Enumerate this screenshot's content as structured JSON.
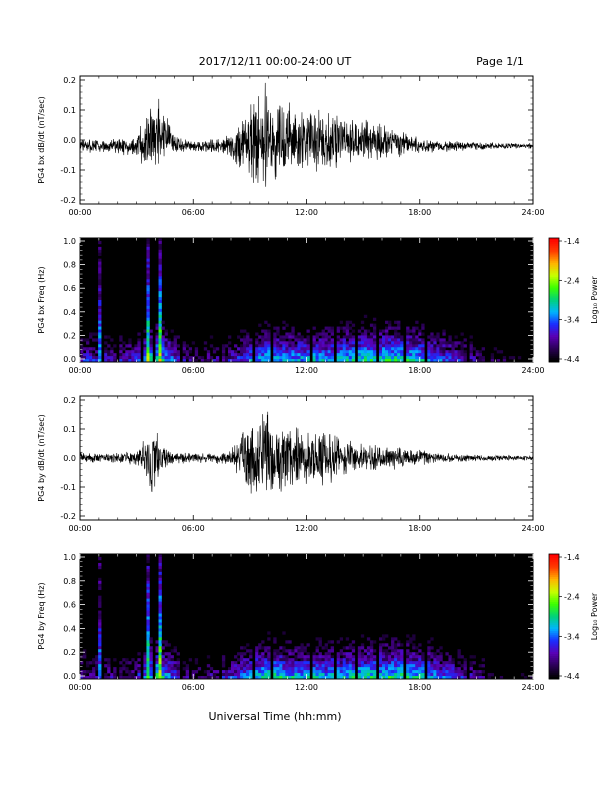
{
  "header": {
    "date_range": "2017/12/11  00:00-24:00 UT",
    "page": "Page 1/1"
  },
  "footer": {
    "xlabel": "Universal Time (hh:mm)"
  },
  "colorbar": {
    "label": "Log₁₀ Power",
    "ticks": [
      -1.4,
      -2.4,
      -3.4,
      -4.4
    ],
    "tick_labels": [
      "-1.4",
      "-2.4",
      "-3.4",
      "-4.4"
    ],
    "range": [
      -4.4,
      -1.4
    ],
    "colors": [
      "#000000",
      "#2a0055",
      "#5a00b4",
      "#1a2bff",
      "#00b4ff",
      "#00d27a",
      "#3cff00",
      "#c8ff00",
      "#ffb400",
      "#ff3c00",
      "#ff0000"
    ]
  },
  "chart_data": [
    {
      "type": "line",
      "ylabel": "PG4 bx dB/dt (nT/sec)",
      "xlim": [
        "00:00",
        "24:00"
      ],
      "ylim": [
        -0.2,
        0.2
      ],
      "x_ticks": [
        "00:00",
        "06:00",
        "12:00",
        "18:00",
        "24:00"
      ],
      "y_ticks": [
        "0.2",
        "0.1",
        "0.0",
        "-0.1",
        "-0.2"
      ],
      "series": [
        {
          "x_hours": [
            0,
            1,
            2,
            3,
            3.5,
            3.85,
            4.2,
            5,
            6,
            7,
            8,
            8.6,
            9.3,
            9.7,
            10.5,
            11,
            12,
            13,
            14,
            15,
            16,
            17,
            18,
            19,
            20,
            21,
            22,
            23,
            24
          ],
          "center": [
            -0.02,
            -0.02,
            -0.02,
            -0.02,
            -0.01,
            0.0,
            0.04,
            -0.01,
            -0.02,
            -0.02,
            -0.02,
            -0.01,
            0.0,
            0.02,
            0.01,
            0.01,
            0.0,
            0.0,
            0.0,
            0.0,
            -0.01,
            -0.01,
            -0.02,
            -0.02,
            -0.02,
            -0.02,
            -0.02,
            -0.02,
            -0.02
          ],
          "amplitude": [
            0.03,
            0.02,
            0.03,
            0.04,
            0.1,
            0.2,
            0.12,
            0.04,
            0.02,
            0.03,
            0.04,
            0.12,
            0.18,
            0.2,
            0.15,
            0.13,
            0.12,
            0.14,
            0.1,
            0.08,
            0.07,
            0.05,
            0.03,
            0.02,
            0.02,
            0.015,
            0.012,
            0.01,
            0.01
          ]
        }
      ]
    },
    {
      "type": "heatmap",
      "ylabel": "PG4 bx Freq (Hz)",
      "xlim": [
        "00:00",
        "24:00"
      ],
      "ylim": [
        0.0,
        1.0
      ],
      "x_ticks": [
        "00:00",
        "06:00",
        "12:00",
        "18:00",
        "24:00"
      ],
      "y_ticks": [
        "1.0",
        "0.8",
        "0.6",
        "0.4",
        "0.2",
        "0.0"
      ],
      "value_label": "Log₁₀ Power",
      "value_range": [
        -4.4,
        -1.4
      ],
      "gap_hours": [
        1.25,
        2.0,
        3.3,
        3.85,
        5.3,
        7.5,
        9.25,
        10.2,
        12.3,
        13.5,
        14.6,
        15.7,
        17.15,
        18.3,
        20.5,
        21.5
      ],
      "bright_columns_hours": [
        1.0,
        3.6,
        4.2
      ],
      "energy_envelope": {
        "hours": [
          0,
          2,
          3,
          4,
          5,
          6,
          7,
          8,
          9,
          10,
          11,
          12,
          13,
          14,
          15,
          16,
          17,
          18,
          19,
          20,
          21,
          22,
          23,
          24
        ],
        "level": [
          0.55,
          0.5,
          0.55,
          0.85,
          0.6,
          0.4,
          0.45,
          0.5,
          0.65,
          0.75,
          0.72,
          0.7,
          0.72,
          0.75,
          0.78,
          0.8,
          0.82,
          0.75,
          0.65,
          0.55,
          0.45,
          0.35,
          0.3,
          0.25
        ]
      }
    },
    {
      "type": "line",
      "ylabel": "PG4 by dB/dt (nT/sec)",
      "xlim": [
        "00:00",
        "24:00"
      ],
      "ylim": [
        -0.2,
        0.2
      ],
      "x_ticks": [
        "00:00",
        "06:00",
        "12:00",
        "18:00",
        "24:00"
      ],
      "y_ticks": [
        "0.2",
        "0.1",
        "0.0",
        "-0.1",
        "-0.2"
      ],
      "series": [
        {
          "x_hours": [
            0,
            1,
            2,
            3,
            3.5,
            3.8,
            4.2,
            5,
            6,
            7,
            8,
            8.5,
            9.2,
            9.7,
            10.5,
            11,
            12,
            13,
            14,
            15,
            16,
            17,
            18,
            19,
            20,
            21,
            22,
            23,
            24
          ],
          "center": [
            0.0,
            0.0,
            0.0,
            0.0,
            0.0,
            0.0,
            0.0,
            0.0,
            0.0,
            0.0,
            0.0,
            0.0,
            0.0,
            0.0,
            0.0,
            0.0,
            0.0,
            0.0,
            0.0,
            0.0,
            0.0,
            0.0,
            0.0,
            0.0,
            0.0,
            0.0,
            0.0,
            0.0,
            0.0
          ],
          "amplitude": [
            0.02,
            0.02,
            0.02,
            0.03,
            0.08,
            0.2,
            0.06,
            0.02,
            0.02,
            0.02,
            0.03,
            0.08,
            0.18,
            0.2,
            0.12,
            0.12,
            0.1,
            0.12,
            0.08,
            0.06,
            0.05,
            0.04,
            0.03,
            0.02,
            0.015,
            0.012,
            0.01,
            0.01,
            0.01
          ]
        }
      ]
    },
    {
      "type": "heatmap",
      "ylabel": "PG4 by Freq (Hz)",
      "xlim": [
        "00:00",
        "24:00"
      ],
      "ylim": [
        0.0,
        1.0
      ],
      "x_ticks": [
        "00:00",
        "06:00",
        "12:00",
        "18:00",
        "24:00"
      ],
      "y_ticks": [
        "1.0",
        "0.8",
        "0.6",
        "0.4",
        "0.2",
        "0.0"
      ],
      "value_label": "Log₁₀ Power",
      "value_range": [
        -4.4,
        -1.4
      ],
      "gap_hours": [
        1.25,
        2.0,
        3.3,
        3.85,
        5.3,
        7.5,
        9.25,
        10.2,
        12.3,
        13.5,
        14.6,
        15.7,
        17.15,
        18.3,
        20.5,
        21.5
      ],
      "bright_columns_hours": [
        1.0,
        3.6,
        4.2
      ],
      "energy_envelope": {
        "hours": [
          0,
          2,
          3,
          4,
          5,
          6,
          7,
          8,
          9,
          10,
          11,
          12,
          13,
          14,
          15,
          16,
          17,
          18,
          19,
          20,
          21,
          22,
          23,
          24
        ],
        "level": [
          0.5,
          0.45,
          0.5,
          0.85,
          0.6,
          0.4,
          0.45,
          0.55,
          0.7,
          0.8,
          0.75,
          0.72,
          0.72,
          0.75,
          0.78,
          0.8,
          0.82,
          0.75,
          0.65,
          0.55,
          0.45,
          0.35,
          0.3,
          0.25
        ]
      }
    }
  ]
}
